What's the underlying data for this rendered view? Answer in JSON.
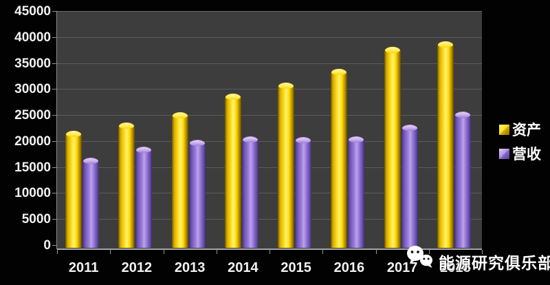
{
  "chart_data": {
    "type": "bar",
    "title": "",
    "xlabel": "",
    "ylabel": "",
    "categories": [
      "2011",
      "2012",
      "2013",
      "2014",
      "2015",
      "2016",
      "2017",
      "2018"
    ],
    "series": [
      {
        "name": "资产",
        "color": "#FFD700",
        "values": [
          22000,
          23500,
          25500,
          29100,
          31300,
          33900,
          38100,
          39200
        ]
      },
      {
        "name": "营收",
        "color": "#9B7FDD",
        "values": [
          16800,
          18900,
          20300,
          20900,
          20750,
          20900,
          23200,
          25700
        ]
      }
    ],
    "ylim": [
      0,
      45000
    ],
    "ytick_step": 5000,
    "ytick_labels": [
      "0",
      "5000",
      "10000",
      "15000",
      "20000",
      "25000",
      "30000",
      "35000",
      "40000",
      "45000"
    ],
    "grid": true,
    "legend_position": "right",
    "plot_background": "#3D3D3D",
    "page_background": "#020202",
    "gridline_color": "#5C5C5C",
    "axis_color": "#A6A6A6",
    "tick_label_color": "#F2F2F2"
  },
  "legend": {
    "items": [
      {
        "label": "资产",
        "swatch_color": "#FFD700"
      },
      {
        "label": "营收",
        "swatch_color": "#9B7FDD"
      }
    ]
  },
  "watermark": {
    "icon": "wechat-icon",
    "text": "能源研究俱乐部"
  }
}
